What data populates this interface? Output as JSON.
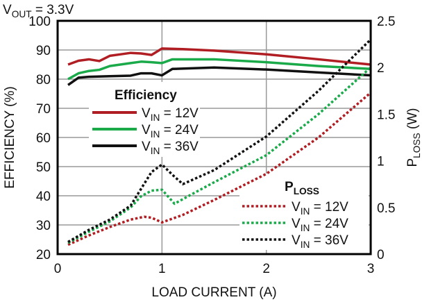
{
  "chart_data": {
    "type": "line",
    "title": {
      "pre": "V",
      "sub": "OUT",
      "post": " = 3.3V"
    },
    "xlabel": "LOAD CURRENT (A)",
    "ylabel": "EFFICIENCY (%)",
    "y2label": {
      "pre": "P",
      "sub": "LOSS",
      "post": " (W)"
    },
    "xlim": [
      0,
      3
    ],
    "ylim": [
      20,
      100
    ],
    "y2lim": [
      0,
      2.5
    ],
    "xticks": [
      "0",
      "1",
      "2",
      "3"
    ],
    "yticks": [
      "20",
      "30",
      "40",
      "50",
      "60",
      "70",
      "80",
      "90",
      "100"
    ],
    "y2ticks": [
      "0",
      "0.5",
      "1",
      "1.5",
      "2",
      "2.5"
    ],
    "grid": true,
    "legend_efficiency_title": "Efficiency",
    "legend_ploss_title": {
      "pre": "P",
      "sub": "LOSS"
    },
    "series": [
      {
        "name": {
          "pre": "V",
          "sub": "IN",
          "post": " = 12V"
        },
        "group": "efficiency",
        "axis": "left",
        "color": "#b01e23",
        "style": "solid",
        "x": [
          0.1,
          0.2,
          0.3,
          0.4,
          0.5,
          0.6,
          0.7,
          0.8,
          0.9,
          1.0,
          1.2,
          1.5,
          2.0,
          2.5,
          3.0
        ],
        "y": [
          85,
          86.3,
          86.8,
          86.2,
          88,
          88.5,
          89,
          88.8,
          88.3,
          90.5,
          90.3,
          89.8,
          88.5,
          86.8,
          85
        ]
      },
      {
        "name": {
          "pre": "V",
          "sub": "IN",
          "post": " = 24V"
        },
        "group": "efficiency",
        "axis": "left",
        "color": "#1aaa4a",
        "style": "solid",
        "x": [
          0.1,
          0.2,
          0.3,
          0.4,
          0.5,
          0.6,
          0.7,
          0.8,
          0.9,
          1.0,
          1.1,
          1.5,
          2.0,
          2.5,
          3.0
        ],
        "y": [
          80,
          82,
          82.8,
          83.2,
          84.5,
          85,
          85.5,
          86,
          85.8,
          85.5,
          86.8,
          86.8,
          85.8,
          84.5,
          83.5
        ]
      },
      {
        "name": {
          "pre": "V",
          "sub": "IN",
          "post": " = 36V"
        },
        "group": "efficiency",
        "axis": "left",
        "color": "#111111",
        "style": "solid",
        "x": [
          0.1,
          0.2,
          0.3,
          0.5,
          0.7,
          0.8,
          0.9,
          1.0,
          1.1,
          1.5,
          2.0,
          2.5,
          3.0
        ],
        "y": [
          78,
          80.5,
          80.8,
          81,
          81.2,
          82,
          82,
          81.3,
          83.5,
          84,
          83.3,
          82.3,
          81.3
        ]
      },
      {
        "name": {
          "pre": "V",
          "sub": "IN",
          "post": " = 12V"
        },
        "group": "ploss",
        "axis": "right",
        "color": "#b01e23",
        "style": "dotted",
        "x": [
          0.1,
          0.3,
          0.5,
          0.7,
          0.83,
          0.9,
          1.0,
          1.2,
          1.5,
          2.0,
          2.5,
          3.0
        ],
        "y": [
          0.1,
          0.2,
          0.29,
          0.37,
          0.4,
          0.39,
          0.34,
          0.42,
          0.58,
          0.86,
          1.25,
          1.73
        ]
      },
      {
        "name": {
          "pre": "V",
          "sub": "IN",
          "post": " = 24V"
        },
        "group": "ploss",
        "axis": "right",
        "color": "#1aaa4a",
        "style": "dotted",
        "x": [
          0.1,
          0.3,
          0.5,
          0.7,
          0.8,
          0.9,
          1.0,
          1.12,
          1.3,
          1.5,
          2.0,
          2.5,
          3.0
        ],
        "y": [
          0.12,
          0.24,
          0.35,
          0.5,
          0.62,
          0.68,
          0.69,
          0.54,
          0.65,
          0.77,
          1.06,
          1.5,
          2.0
        ]
      },
      {
        "name": {
          "pre": "V",
          "sub": "IN",
          "post": " = 36V"
        },
        "group": "ploss",
        "axis": "right",
        "color": "#111111",
        "style": "dotted",
        "x": [
          0.1,
          0.3,
          0.5,
          0.7,
          0.8,
          0.9,
          1.0,
          1.1,
          1.2,
          1.5,
          2.0,
          2.5,
          3.0
        ],
        "y": [
          0.13,
          0.26,
          0.37,
          0.52,
          0.7,
          0.88,
          0.96,
          0.85,
          0.75,
          0.9,
          1.26,
          1.75,
          2.3
        ]
      }
    ]
  }
}
